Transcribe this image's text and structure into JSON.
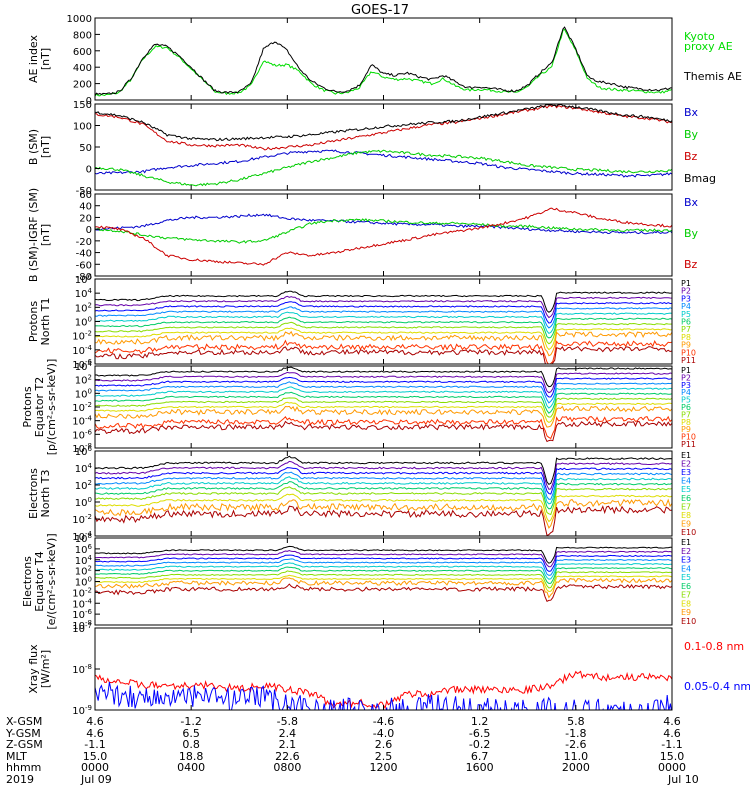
{
  "title": "GOES-17",
  "chart_data": [
    {
      "type": "line",
      "ylabel": [
        "AE index",
        "[nT]"
      ],
      "ylim": [
        0,
        1000
      ],
      "yticks": [
        "1000",
        "800",
        "600",
        "400",
        "200",
        "0"
      ],
      "x": [
        0,
        0.5,
        1,
        1.5,
        2,
        2.5,
        3,
        3.5,
        4,
        4.5,
        5,
        5.5,
        6,
        6.5,
        7,
        7.5,
        8,
        8.5,
        9,
        9.5,
        10,
        10.5,
        11,
        11.5,
        12,
        12.5,
        13,
        13.5,
        14,
        14.5,
        15,
        15.5,
        16,
        16.5,
        17,
        17.5,
        18,
        18.5,
        19,
        19.5,
        20,
        20.5,
        21,
        21.5,
        22,
        22.5,
        23,
        23.5,
        24
      ],
      "series": [
        {
          "name": "Kyoto proxy AE",
          "color": "#00dd00",
          "values": [
            60,
            60,
            90,
            250,
            500,
            650,
            640,
            520,
            380,
            240,
            100,
            80,
            90,
            180,
            480,
            420,
            430,
            350,
            200,
            120,
            80,
            90,
            150,
            350,
            280,
            250,
            260,
            230,
            200,
            260,
            170,
            120,
            130,
            120,
            100,
            90,
            160,
            300,
            400,
            870,
            600,
            250,
            150,
            130,
            120,
            110,
            100,
            90,
            120
          ]
        },
        {
          "name": "Themis AE",
          "color": "#000000",
          "values": [
            70,
            70,
            100,
            260,
            520,
            680,
            650,
            540,
            400,
            250,
            110,
            90,
            100,
            200,
            620,
            720,
            600,
            380,
            230,
            150,
            100,
            110,
            180,
            430,
            320,
            300,
            330,
            280,
            250,
            300,
            220,
            150,
            160,
            140,
            120,
            110,
            180,
            330,
            450,
            900,
            620,
            280,
            220,
            200,
            160,
            140,
            130,
            120,
            150
          ]
        }
      ],
      "legend": [
        {
          "text": "Kyoto",
          "color": "#00dd00"
        },
        {
          "text": "proxy AE",
          "color": "#00dd00"
        },
        {
          "text": "Themis AE",
          "color": "#000000"
        }
      ]
    },
    {
      "type": "line",
      "ylabel": [
        "B (SM)",
        "[nT]"
      ],
      "ylim": [
        -60,
        150
      ],
      "yticks": [
        "150",
        "100",
        "50",
        "0",
        "-50"
      ],
      "x": [
        0,
        1,
        2,
        3,
        4,
        5,
        6,
        7,
        8,
        9,
        10,
        11,
        12,
        13,
        14,
        15,
        16,
        17,
        18,
        19,
        20,
        21,
        22,
        23,
        24
      ],
      "series": [
        {
          "name": "Bx",
          "color": "#0000cc",
          "values": [
            -20,
            -18,
            -15,
            -5,
            0,
            5,
            10,
            20,
            30,
            35,
            35,
            30,
            25,
            20,
            15,
            10,
            5,
            -5,
            -10,
            -15,
            -20,
            -22,
            -25,
            -25,
            -20
          ]
        },
        {
          "name": "By",
          "color": "#00cc00",
          "values": [
            -5,
            -10,
            -25,
            -40,
            -48,
            -45,
            -35,
            -20,
            -5,
            10,
            20,
            32,
            35,
            30,
            25,
            22,
            18,
            10,
            0,
            -5,
            -10,
            -12,
            -15,
            -15,
            -12
          ]
        },
        {
          "name": "Bz",
          "color": "#cc0000",
          "values": [
            125,
            118,
            100,
            60,
            50,
            48,
            50,
            40,
            45,
            50,
            60,
            70,
            80,
            90,
            100,
            105,
            115,
            125,
            135,
            145,
            140,
            130,
            120,
            115,
            105
          ]
        },
        {
          "name": "Bmag",
          "color": "#000000",
          "values": [
            130,
            122,
            105,
            75,
            65,
            63,
            65,
            68,
            70,
            75,
            82,
            88,
            95,
            100,
            105,
            108,
            118,
            128,
            138,
            148,
            143,
            133,
            123,
            118,
            108
          ]
        }
      ],
      "legend": [
        {
          "text": "Bx",
          "color": "#0000cc"
        },
        {
          "text": "By",
          "color": "#00cc00"
        },
        {
          "text": "Bz",
          "color": "#cc0000"
        },
        {
          "text": "Bmag",
          "color": "#000000"
        }
      ]
    },
    {
      "type": "line",
      "ylabel": [
        "B (SM)-IGRF (SM)",
        "[nT]"
      ],
      "ylim": [
        -80,
        60
      ],
      "yticks": [
        "60",
        "40",
        "20",
        "0",
        "-20",
        "-40",
        "-60",
        "-80"
      ],
      "x": [
        0,
        1,
        2,
        3,
        4,
        5,
        6,
        7,
        8,
        9,
        10,
        11,
        12,
        13,
        14,
        15,
        16,
        17,
        18,
        19,
        20,
        21,
        22,
        23,
        24
      ],
      "series": [
        {
          "name": "Bx",
          "color": "#0000cc",
          "values": [
            0,
            2,
            5,
            15,
            20,
            20,
            22,
            25,
            18,
            15,
            14,
            12,
            10,
            8,
            8,
            5,
            5,
            3,
            0,
            -2,
            -4,
            -5,
            -6,
            -6,
            -5
          ]
        },
        {
          "name": "By",
          "color": "#00cc00",
          "values": [
            0,
            -3,
            -10,
            -15,
            -18,
            -20,
            -22,
            -20,
            -5,
            10,
            15,
            16,
            14,
            12,
            10,
            10,
            8,
            5,
            5,
            2,
            0,
            -1,
            -2,
            -2,
            -2
          ]
        },
        {
          "name": "Bz",
          "color": "#cc0000",
          "values": [
            5,
            0,
            -15,
            -45,
            -52,
            -55,
            -58,
            -60,
            -40,
            -45,
            -40,
            -32,
            -25,
            -18,
            -10,
            -4,
            2,
            10,
            20,
            35,
            28,
            18,
            12,
            8,
            5
          ]
        }
      ],
      "legend": [
        {
          "text": "Bx",
          "color": "#0000cc"
        },
        {
          "text": "By",
          "color": "#00cc00"
        },
        {
          "text": "Bz",
          "color": "#cc0000"
        }
      ]
    },
    {
      "type": "line",
      "ylabel": [
        "Protons",
        "North T1"
      ],
      "scale": "log",
      "ylim": [
        -7,
        6
      ],
      "yticks": [
        {
          "base": "10",
          "exp": "6"
        },
        {
          "base": "10",
          "exp": "4"
        },
        {
          "base": "10",
          "exp": "2"
        },
        {
          "base": "10",
          "exp": "0"
        },
        {
          "base": "10",
          "exp": "-2"
        },
        {
          "base": "10",
          "exp": "-4"
        },
        {
          "base": "10",
          "exp": "-6"
        }
      ],
      "channels": [
        {
          "name": "P1",
          "color": "#000000",
          "level": 2.8
        },
        {
          "name": "P2",
          "color": "#6600aa",
          "level": 2.0
        },
        {
          "name": "P3",
          "color": "#0000ff",
          "level": 1.2
        },
        {
          "name": "P4",
          "color": "#0088ff",
          "level": 0.4
        },
        {
          "name": "P5",
          "color": "#00cccc",
          "level": -0.4
        },
        {
          "name": "P6",
          "color": "#00cc66",
          "level": -1.2
        },
        {
          "name": "P7",
          "color": "#88dd00",
          "level": -2.0
        },
        {
          "name": "P8",
          "color": "#dddd00",
          "level": -2.8
        },
        {
          "name": "P9",
          "color": "#ff9900",
          "level": -3.6
        },
        {
          "name": "P10",
          "color": "#ff3300",
          "level": -5.0
        },
        {
          "name": "P11",
          "color": "#aa0000",
          "level": -5.8
        }
      ]
    },
    {
      "type": "line",
      "ylabel": [
        "Protons",
        "Equator T2",
        "[p/(cm²-s-sr-keV)]"
      ],
      "scale": "log",
      "ylim": [
        -9,
        4
      ],
      "yticks": [
        {
          "base": "10",
          "exp": "4"
        },
        {
          "base": "10",
          "exp": "2"
        },
        {
          "base": "10",
          "exp": "0"
        },
        {
          "base": "10",
          "exp": "-2"
        },
        {
          "base": "10",
          "exp": "-4"
        },
        {
          "base": "10",
          "exp": "-6"
        },
        {
          "base": "10",
          "exp": "-8"
        }
      ],
      "channels": [
        {
          "name": "P1",
          "color": "#000000",
          "level": 2.5
        },
        {
          "name": "P2",
          "color": "#6600aa",
          "level": 1.7
        },
        {
          "name": "P3",
          "color": "#0000ff",
          "level": 0.9
        },
        {
          "name": "P4",
          "color": "#0088ff",
          "level": 0.1
        },
        {
          "name": "P5",
          "color": "#00cccc",
          "level": -0.7
        },
        {
          "name": "P6",
          "color": "#00cc66",
          "level": -1.5
        },
        {
          "name": "P7",
          "color": "#88dd00",
          "level": -2.3
        },
        {
          "name": "P8",
          "color": "#dddd00",
          "level": -3.1
        },
        {
          "name": "P9",
          "color": "#ff9900",
          "level": -3.9
        },
        {
          "name": "P10",
          "color": "#ff3300",
          "level": -5.5
        },
        {
          "name": "P11",
          "color": "#aa0000",
          "level": -6.3
        }
      ]
    },
    {
      "type": "line",
      "ylabel": [
        "Electrons",
        "North T3"
      ],
      "scale": "log",
      "ylim": [
        -4,
        6
      ],
      "yticks": [
        {
          "base": "10",
          "exp": "6"
        },
        {
          "base": "10",
          "exp": "4"
        },
        {
          "base": "10",
          "exp": "2"
        },
        {
          "base": "10",
          "exp": "0"
        },
        {
          "base": "10",
          "exp": "-2"
        },
        {
          "base": "10",
          "exp": "-4"
        }
      ],
      "channels": [
        {
          "name": "E1",
          "color": "#000000",
          "level": 4.0
        },
        {
          "name": "E2",
          "color": "#6600aa",
          "level": 3.4
        },
        {
          "name": "E3",
          "color": "#0000ff",
          "level": 2.8
        },
        {
          "name": "E4",
          "color": "#0088ff",
          "level": 2.2
        },
        {
          "name": "E5",
          "color": "#00cccc",
          "level": 1.6
        },
        {
          "name": "E6",
          "color": "#00cc66",
          "level": 1.0
        },
        {
          "name": "E7",
          "color": "#88dd00",
          "level": 0.4
        },
        {
          "name": "E8",
          "color": "#dddd00",
          "level": -0.4
        },
        {
          "name": "E9",
          "color": "#ff9900",
          "level": -1.2
        },
        {
          "name": "E10",
          "color": "#aa0000",
          "level": -2.0
        }
      ]
    },
    {
      "type": "line",
      "ylabel": [
        "Electrons",
        "Equator T4",
        "[e/(cm²-s-sr-keV)]"
      ],
      "scale": "log",
      "ylim": [
        -9,
        8
      ],
      "yticks": [
        {
          "base": "10",
          "exp": "8"
        },
        {
          "base": "10",
          "exp": "6"
        },
        {
          "base": "10",
          "exp": "4"
        },
        {
          "base": "10",
          "exp": "2"
        },
        {
          "base": "10",
          "exp": "0"
        },
        {
          "base": "10",
          "exp": "-2"
        },
        {
          "base": "10",
          "exp": "-4"
        },
        {
          "base": "10",
          "exp": "-6"
        },
        {
          "base": "10",
          "exp": "-8"
        }
      ],
      "channels": [
        {
          "name": "E1",
          "color": "#000000",
          "level": 5.0
        },
        {
          "name": "E2",
          "color": "#6600aa",
          "level": 4.2
        },
        {
          "name": "E3",
          "color": "#0000ff",
          "level": 3.4
        },
        {
          "name": "E4",
          "color": "#0088ff",
          "level": 2.6
        },
        {
          "name": "E5",
          "color": "#00cccc",
          "level": 1.8
        },
        {
          "name": "E6",
          "color": "#00cc66",
          "level": 1.0
        },
        {
          "name": "E7",
          "color": "#88dd00",
          "level": 0.2
        },
        {
          "name": "E8",
          "color": "#dddd00",
          "level": -0.6
        },
        {
          "name": "E9",
          "color": "#ff9900",
          "level": -1.4
        },
        {
          "name": "E10",
          "color": "#aa0000",
          "level": -2.6
        }
      ]
    },
    {
      "type": "line",
      "ylabel": [
        "Xray flux",
        "[W/m²]"
      ],
      "scale": "log",
      "ylim": [
        -9,
        -7
      ],
      "yticks": [
        {
          "base": "10",
          "exp": "-7"
        },
        {
          "base": "10",
          "exp": "-8"
        },
        {
          "base": "10",
          "exp": "-9"
        }
      ],
      "x": [
        0,
        1,
        2,
        3,
        4,
        5,
        6,
        7,
        8,
        9,
        10,
        11,
        12,
        13,
        14,
        15,
        16,
        17,
        18,
        19,
        20,
        21,
        22,
        23,
        24
      ],
      "series": [
        {
          "name": "0.1-0.8 nm",
          "color": "#ff0000",
          "values": [
            -8.2,
            -8.3,
            -8.4,
            -8.4,
            -8.4,
            -8.4,
            -8.5,
            -8.4,
            -8.5,
            -8.6,
            -8.9,
            -8.8,
            -8.9,
            -8.6,
            -8.6,
            -8.5,
            -8.5,
            -8.5,
            -8.5,
            -8.4,
            -8.1,
            -8.2,
            -8.2,
            -8.2,
            -8.2
          ]
        },
        {
          "name": "0.05-0.4 nm",
          "color": "#0000ff",
          "values": [
            -8.6,
            -8.6,
            -8.7,
            -8.7,
            -8.7,
            -8.7,
            -8.8,
            -8.7,
            -8.8,
            -9.0,
            -9.0,
            -9.0,
            -9.0,
            -9.0,
            -8.9,
            -8.9,
            -9.0,
            -9.0,
            -9.0,
            -9.0,
            -9.0,
            -9.0,
            -9.0,
            -9.0,
            -8.9
          ]
        }
      ],
      "legend": [
        {
          "text": "0.1-0.8 nm",
          "color": "#ff0000"
        },
        {
          "text": "0.05-0.4 nm",
          "color": "#0000ff"
        }
      ]
    }
  ],
  "ephemeris": {
    "labels": [
      "X-GSM",
      "Y-GSM",
      "Z-GSM",
      "MLT",
      "hhmm",
      "2019"
    ],
    "columns": [
      {
        "pos": 0,
        "values": [
          "4.6",
          "4.6",
          "-1.1",
          "15.0",
          "0000",
          "Jul 09"
        ]
      },
      {
        "pos": 1,
        "values": [
          "-1.2",
          "6.5",
          "0.8",
          "18.8",
          "0400",
          ""
        ]
      },
      {
        "pos": 2,
        "values": [
          "-5.8",
          "2.4",
          "2.1",
          "22.6",
          "0800",
          ""
        ]
      },
      {
        "pos": 3,
        "values": [
          "-4.6",
          "-4.0",
          "2.6",
          "2.5",
          "1200",
          ""
        ]
      },
      {
        "pos": 4,
        "values": [
          "1.2",
          "-6.5",
          "-0.2",
          "6.7",
          "1600",
          ""
        ]
      },
      {
        "pos": 5,
        "values": [
          "5.8",
          "-1.8",
          "-2.6",
          "11.0",
          "2000",
          ""
        ]
      },
      {
        "pos": 6,
        "values": [
          "4.6",
          "4.6",
          "-1.1",
          "15.0",
          "0000",
          "Jul 10"
        ]
      }
    ]
  }
}
